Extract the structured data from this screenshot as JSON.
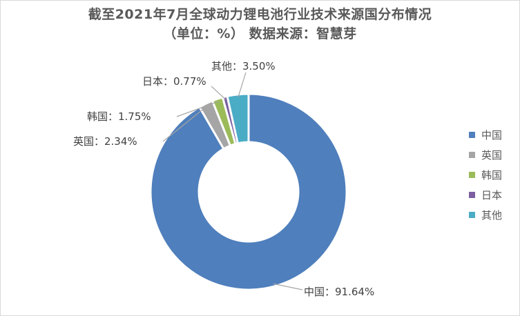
{
  "title_line1": "截至2021年7月全球动力锂电池行业技术来源国分布情况",
  "title_line2": "（单位：%） 数据来源：智慧芽",
  "chart_data": {
    "type": "pie",
    "variant": "donut",
    "title": "截至2021年7月全球动力锂电池行业技术来源国分布情况",
    "subtitle": "（单位：%） 数据来源：智慧芽",
    "categories": [
      "中国",
      "英国",
      "韩国",
      "日本",
      "其他"
    ],
    "values": [
      91.64,
      2.34,
      1.75,
      0.77,
      3.5
    ],
    "data_labels": [
      "中国：91.64%",
      "英国：2.34%",
      "韩国：1.75%",
      "日本：0.77%",
      "其他：3.50%"
    ],
    "colors": [
      "#4f7fbc",
      "#a5a5a5",
      "#9bbb59",
      "#7b5fa0",
      "#4bacc6"
    ],
    "legend": "right"
  }
}
